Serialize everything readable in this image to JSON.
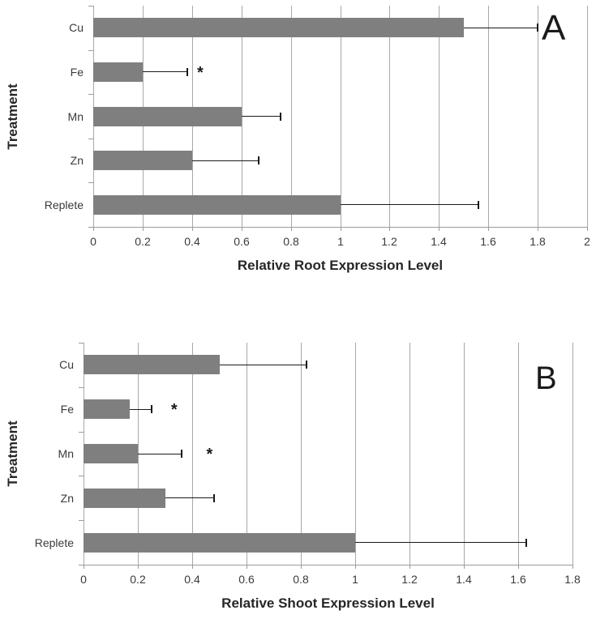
{
  "figure": {
    "background": "#ffffff"
  },
  "style": {
    "bar_color": "#7f7f7f",
    "grid_color": "#a8a8a8",
    "axis_color": "#9b9b9b",
    "error_color": "#1a1a1a",
    "tick_text_color": "#3a3a3a",
    "title_text_color": "#262626"
  },
  "chart_data": [
    {
      "type": "bar",
      "orientation": "horizontal",
      "panel_label": "A",
      "xlabel": "Relative Root Expression Level",
      "ylabel": "Treatment",
      "categories": [
        "Cu",
        "Fe",
        "Mn",
        "Zn",
        "Replete"
      ],
      "values": [
        1.5,
        0.2,
        0.6,
        0.4,
        1.0
      ],
      "errors_plus": [
        0.3,
        0.18,
        0.16,
        0.27,
        0.56
      ],
      "annotations": [
        {
          "row": 1,
          "category": "Fe",
          "x": 0.44,
          "symbol": "*"
        }
      ],
      "xlim": [
        0,
        2
      ],
      "xtick_step": 0.2,
      "xtick_labels": [
        "0",
        "0.2",
        "0.4",
        "0.6",
        "0.8",
        "1",
        "1.2",
        "1.4",
        "1.6",
        "1.8",
        "2"
      ],
      "grid": true,
      "legend": false
    },
    {
      "type": "bar",
      "orientation": "horizontal",
      "panel_label": "B",
      "xlabel": "Relative Shoot Expression Level",
      "ylabel": "Treatment",
      "categories": [
        "Cu",
        "Fe",
        "Mn",
        "Zn",
        "Replete"
      ],
      "values": [
        0.5,
        0.17,
        0.2,
        0.3,
        1.0
      ],
      "errors_plus": [
        0.32,
        0.08,
        0.16,
        0.18,
        0.63
      ],
      "annotations": [
        {
          "row": 1,
          "category": "Fe",
          "x": 0.34,
          "symbol": "*"
        },
        {
          "row": 2,
          "category": "Mn",
          "x": 0.47,
          "symbol": "*"
        }
      ],
      "xlim": [
        0,
        1.8
      ],
      "xtick_step": 0.2,
      "xtick_labels": [
        "0",
        "0.2",
        "0.4",
        "0.6",
        "0.8",
        "1",
        "1.2",
        "1.4",
        "1.6",
        "1.8"
      ],
      "grid": true,
      "legend": false
    }
  ]
}
